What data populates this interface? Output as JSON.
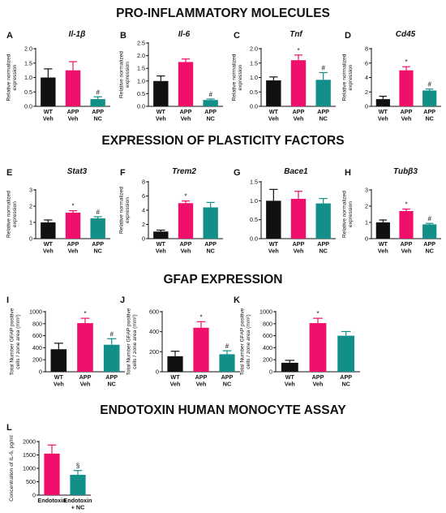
{
  "sections": [
    {
      "title": "PRO-INFLAMMATORY MOLECULES"
    },
    {
      "title": "EXPRESSION OF PLASTICITY FACTORS"
    },
    {
      "title": "GFAP EXPRESSION"
    },
    {
      "title": "ENDOTOXIN HUMAN MONOCYTE ASSAY"
    }
  ],
  "colors": {
    "wt_veh": "#111111",
    "app_veh": "#f0106b",
    "app_nc": "#138f8a",
    "axis": "#111111"
  },
  "chart_data": [
    {
      "type": "bar",
      "panel": "A",
      "title": "Il-1β",
      "ylabel": [
        "Relative normalized",
        "expression"
      ],
      "categories": [
        [
          "WT",
          "Veh"
        ],
        [
          "APP",
          "Veh"
        ],
        [
          "APP",
          "NC"
        ]
      ],
      "values": [
        1.0,
        1.25,
        0.25
      ],
      "errors": [
        0.3,
        0.3,
        0.08
      ],
      "markers": [
        "",
        "",
        "#"
      ],
      "ylim": [
        0,
        2.0
      ],
      "yticks": [
        "0.0",
        "0.5",
        "1.0",
        "1.5",
        "2.0"
      ],
      "ytick_values": [
        0,
        0.5,
        1.0,
        1.5,
        2.0
      ]
    },
    {
      "type": "bar",
      "panel": "B",
      "title": "Il-6",
      "ylabel": [
        "Relative normalized",
        "expression"
      ],
      "categories": [
        [
          "WT",
          "Veh"
        ],
        [
          "APP",
          "Veh"
        ],
        [
          "APP",
          "NC"
        ]
      ],
      "values": [
        1.0,
        1.75,
        0.25
      ],
      "errors": [
        0.2,
        0.12,
        0.04
      ],
      "markers": [
        "",
        "",
        "#"
      ],
      "ylim": [
        0,
        2.5
      ],
      "yticks": [
        "0.0",
        "0.5",
        "1.0",
        "1.5",
        "2.0",
        "2.5"
      ],
      "ytick_values": [
        0,
        0.5,
        1.0,
        1.5,
        2.0,
        2.5
      ]
    },
    {
      "type": "bar",
      "panel": "C",
      "title": "Tnf",
      "ylabel": [
        "Relative normalized",
        "expression"
      ],
      "categories": [
        [
          "WT",
          "Veh"
        ],
        [
          "APP",
          "Veh"
        ],
        [
          "APP",
          "NC"
        ]
      ],
      "values": [
        0.9,
        1.6,
        0.92
      ],
      "errors": [
        0.12,
        0.18,
        0.25
      ],
      "markers": [
        "",
        "*",
        "#"
      ],
      "ylim": [
        0,
        2.0
      ],
      "yticks": [
        "0.0",
        "0.5",
        "1.0",
        "1.5",
        "2.0"
      ],
      "ytick_values": [
        0,
        0.5,
        1.0,
        1.5,
        2.0
      ]
    },
    {
      "type": "bar",
      "panel": "D",
      "title": "Cd45",
      "ylabel": [
        "Relative normalized",
        "expression"
      ],
      "categories": [
        [
          "WT",
          "Veh"
        ],
        [
          "APP",
          "Veh"
        ],
        [
          "APP",
          "NC"
        ]
      ],
      "values": [
        1.0,
        5.0,
        2.2
      ],
      "errors": [
        0.4,
        0.5,
        0.2
      ],
      "markers": [
        "",
        "*",
        "#"
      ],
      "ylim": [
        0,
        8
      ],
      "yticks": [
        "0",
        "2",
        "4",
        "6",
        "8"
      ],
      "ytick_values": [
        0,
        2,
        4,
        6,
        8
      ]
    },
    {
      "type": "bar",
      "panel": "E",
      "title": "Stat3",
      "ylabel": [
        "Relative normalized",
        "expression"
      ],
      "categories": [
        [
          "WT",
          "Veh"
        ],
        [
          "APP",
          "Veh"
        ],
        [
          "APP",
          "NC"
        ]
      ],
      "values": [
        1.0,
        1.6,
        1.25
      ],
      "errors": [
        0.15,
        0.12,
        0.1
      ],
      "markers": [
        "",
        "*",
        "#"
      ],
      "ylim": [
        0,
        3
      ],
      "yticks": [
        "0",
        "1",
        "2",
        "3"
      ],
      "ytick_values": [
        0,
        1,
        2,
        3
      ]
    },
    {
      "type": "bar",
      "panel": "F",
      "title": "Trem2",
      "ylabel": [
        "Relative normalized",
        "expression"
      ],
      "categories": [
        [
          "WT",
          "Veh"
        ],
        [
          "APP",
          "Veh"
        ],
        [
          "APP",
          "NC"
        ]
      ],
      "values": [
        1.0,
        5.0,
        4.4
      ],
      "errors": [
        0.2,
        0.3,
        0.7
      ],
      "markers": [
        "",
        "*",
        ""
      ],
      "ylim": [
        0,
        8
      ],
      "yticks": [
        "0",
        "2",
        "4",
        "6",
        "8"
      ],
      "ytick_values": [
        0,
        2,
        4,
        6,
        8
      ]
    },
    {
      "type": "bar",
      "panel": "G",
      "title": "Bace1",
      "ylabel": [],
      "categories": [
        [
          "WT",
          "Veh"
        ],
        [
          "APP",
          "Veh"
        ],
        [
          "APP",
          "NC"
        ]
      ],
      "values": [
        1.0,
        1.05,
        0.93
      ],
      "errors": [
        0.3,
        0.2,
        0.13
      ],
      "markers": [
        "",
        "",
        ""
      ],
      "ylim": [
        0,
        1.5
      ],
      "yticks": [
        "0.0",
        "0.5",
        "1.0",
        "1.5"
      ],
      "ytick_values": [
        0,
        0.5,
        1.0,
        1.5
      ]
    },
    {
      "type": "bar",
      "panel": "H",
      "title": "Tubβ3",
      "ylabel": [
        "Relative normalized",
        "expression"
      ],
      "categories": [
        [
          "WT",
          "Veh"
        ],
        [
          "APP",
          "Veh"
        ],
        [
          "APP",
          "NC"
        ]
      ],
      "values": [
        1.0,
        1.7,
        0.88
      ],
      "errors": [
        0.15,
        0.12,
        0.06
      ],
      "markers": [
        "",
        "*",
        "#"
      ],
      "ylim": [
        0,
        3
      ],
      "yticks": [
        "0",
        "1",
        "2",
        "3"
      ],
      "ytick_values": [
        0,
        1,
        2,
        3
      ]
    },
    {
      "type": "bar",
      "panel": "I",
      "title": "",
      "ylabel": [
        "Total Number GFAP positive",
        "cells / zone area (mm²)"
      ],
      "categories": [
        [
          "WT",
          "Veh"
        ],
        [
          "APP",
          "Veh"
        ],
        [
          "APP",
          "NC"
        ]
      ],
      "values": [
        375,
        810,
        450
      ],
      "errors": [
        100,
        80,
        100
      ],
      "markers": [
        "",
        "*",
        "#"
      ],
      "ylim": [
        0,
        1000
      ],
      "yticks": [
        "0",
        "200",
        "400",
        "600",
        "800",
        "1000"
      ],
      "ytick_values": [
        0,
        200,
        400,
        600,
        800,
        1000
      ]
    },
    {
      "type": "bar",
      "panel": "J",
      "title": "",
      "ylabel": [
        "Total Number GFAP positive",
        "cells / zone area (mm²)"
      ],
      "categories": [
        [
          "WT",
          "Veh"
        ],
        [
          "APP",
          "Veh"
        ],
        [
          "APP",
          "NC"
        ]
      ],
      "values": [
        155,
        440,
        175
      ],
      "errors": [
        50,
        60,
        35
      ],
      "markers": [
        "",
        "*",
        "#"
      ],
      "ylim": [
        0,
        600
      ],
      "yticks": [
        "0",
        "200",
        "400",
        "600"
      ],
      "ytick_values": [
        0,
        200,
        400,
        600
      ]
    },
    {
      "type": "bar",
      "panel": "K",
      "title": "",
      "ylabel": [
        "Total Number GFAP positive",
        "cells / zone area (mm²)"
      ],
      "categories": [
        [
          "WT",
          "Veh"
        ],
        [
          "APP",
          "Veh"
        ],
        [
          "APP",
          "NC"
        ]
      ],
      "values": [
        150,
        810,
        600
      ],
      "errors": [
        40,
        80,
        70
      ],
      "markers": [
        "",
        "*",
        ""
      ],
      "ylim": [
        0,
        1000
      ],
      "yticks": [
        "0",
        "200",
        "400",
        "600",
        "800",
        "1000"
      ],
      "ytick_values": [
        0,
        200,
        400,
        600,
        800,
        1000
      ]
    },
    {
      "type": "bar",
      "panel": "L",
      "title": "",
      "ylabel": [
        "Concentration of IL-6, pg/ml"
      ],
      "categories": [
        [
          "Endotoxin"
        ],
        [
          "Endotoxin",
          "+ NC"
        ]
      ],
      "values": [
        1550,
        760
      ],
      "errors": [
        320,
        160
      ],
      "markers": [
        "",
        "§"
      ],
      "ylim": [
        0,
        2000
      ],
      "yticks": [
        "0",
        "500",
        "1000",
        "1500",
        "2000"
      ],
      "ytick_values": [
        0,
        500,
        1000,
        1500,
        2000
      ]
    }
  ]
}
